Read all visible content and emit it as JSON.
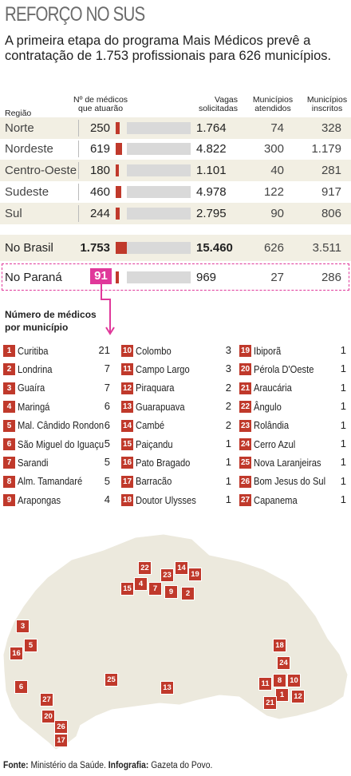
{
  "title": "REFORÇO NO SUS",
  "subtitle": "A primeira etapa do programa Mais Médicos prevê a contratação de 1.753 profissionais para 626 municípios.",
  "headers": {
    "regiao": "Região",
    "medicos_l1": "Nº de médicos",
    "medicos_l2": "que atuarão",
    "vagas_l1": "Vagas",
    "vagas_l2": "solicitadas",
    "atendidos_l1": "Municípios",
    "atendidos_l2": "atendidos",
    "inscritos_l1": "Municípios",
    "inscritos_l2": "inscritos"
  },
  "chart_data": [
    {
      "type": "bar",
      "categories": [
        "Norte",
        "Nordeste",
        "Centro-Oeste",
        "Sudeste",
        "Sul",
        "No Brasil",
        "No Paraná"
      ],
      "series": [
        {
          "name": "Nº de médicos que atuarão",
          "values": [
            250,
            619,
            180,
            460,
            244,
            1753,
            91
          ]
        },
        {
          "name": "Vagas solicitadas",
          "values": [
            1764,
            4822,
            1101,
            4978,
            2795,
            15460,
            969
          ]
        }
      ],
      "labels_medicos": [
        "250",
        "619",
        "180",
        "460",
        "244",
        "1.753",
        "91"
      ],
      "labels_vagas": [
        "1.764",
        "4.822",
        "1.101",
        "4.978",
        "2.795",
        "15.460",
        "969"
      ],
      "municipios_atendidos": [
        "74",
        "300",
        "40",
        "122",
        "90",
        "626",
        "27"
      ],
      "municipios_inscritos": [
        "328",
        "1.179",
        "281",
        "917",
        "806",
        "3.511",
        "286"
      ]
    },
    {
      "type": "table",
      "title": "Número de médicos por município",
      "title_l1": "Número de médicos",
      "title_l2": "por município",
      "items": [
        {
          "n": "1",
          "name": "Curitiba",
          "count": "21"
        },
        {
          "n": "2",
          "name": "Londrina",
          "count": "7"
        },
        {
          "n": "3",
          "name": "Guaíra",
          "count": "7"
        },
        {
          "n": "4",
          "name": "Maringá",
          "count": "6"
        },
        {
          "n": "5",
          "name": "Mal. Cândido Rondon",
          "count": "6"
        },
        {
          "n": "6",
          "name": "São Miguel do Iguaçu",
          "count": "5"
        },
        {
          "n": "7",
          "name": "Sarandi",
          "count": "5"
        },
        {
          "n": "8",
          "name": "Alm. Tamandaré",
          "count": "5"
        },
        {
          "n": "9",
          "name": "Arapongas",
          "count": "4"
        },
        {
          "n": "10",
          "name": "Colombo",
          "count": "3"
        },
        {
          "n": "11",
          "name": "Campo Largo",
          "count": "3"
        },
        {
          "n": "12",
          "name": "Piraquara",
          "count": "2"
        },
        {
          "n": "13",
          "name": "Guarapuava",
          "count": "2"
        },
        {
          "n": "14",
          "name": "Cambé",
          "count": "2"
        },
        {
          "n": "15",
          "name": "Paiçandu",
          "count": "1"
        },
        {
          "n": "16",
          "name": "Pato Bragado",
          "count": "1"
        },
        {
          "n": "17",
          "name": "Barracão",
          "count": "1"
        },
        {
          "n": "18",
          "name": "Doutor Ulysses",
          "count": "1"
        },
        {
          "n": "19",
          "name": "Ibiporã",
          "count": "1"
        },
        {
          "n": "20",
          "name": "Pérola D'Oeste",
          "count": "1"
        },
        {
          "n": "21",
          "name": "Araucária",
          "count": "1"
        },
        {
          "n": "22",
          "name": "Ângulo",
          "count": "1"
        },
        {
          "n": "23",
          "name": "Rolândia",
          "count": "1"
        },
        {
          "n": "24",
          "name": "Cerro Azul",
          "count": "1"
        },
        {
          "n": "25",
          "name": "Nova Laranjeiras",
          "count": "1"
        },
        {
          "n": "26",
          "name": "Bom Jesus do Sul",
          "count": "1"
        },
        {
          "n": "27",
          "name": "Capanema",
          "count": "1"
        }
      ]
    }
  ],
  "colors": {
    "bar_red": "#c0392b",
    "bar_gray": "#d9d9d9",
    "highlight_pink": "#e0389a",
    "row_shade": "#f2efe3",
    "map_fill": "#ece9dd"
  },
  "source": {
    "label1": "Fonte:",
    "value1": "Ministério da Saúde.",
    "label2": "Infografia:",
    "value2": "Gazeta do Povo."
  }
}
